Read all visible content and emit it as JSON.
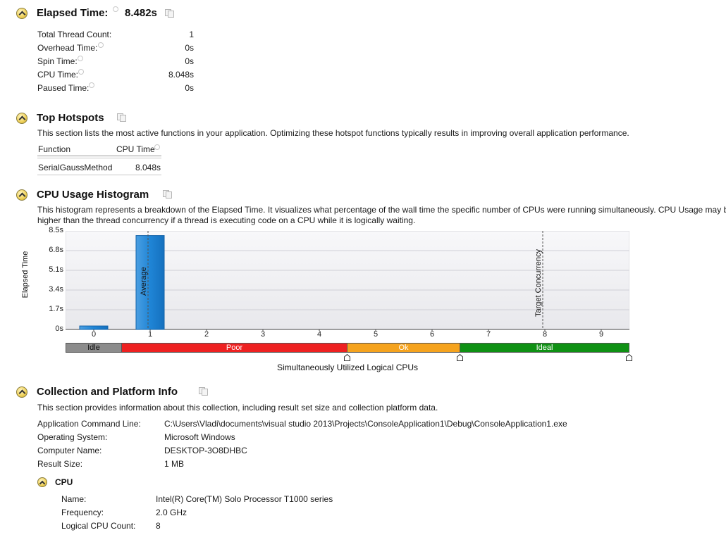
{
  "summary": {
    "title": "Elapsed Time:",
    "elapsed": "8.482s",
    "rows": [
      {
        "label": "Total Thread Count:",
        "value": "1"
      },
      {
        "label": "Overhead Time:",
        "value": "0s"
      },
      {
        "label": "Spin Time:",
        "value": "0s"
      },
      {
        "label": "CPU Time:",
        "value": "8.048s"
      },
      {
        "label": "Paused Time:",
        "value": "0s"
      }
    ]
  },
  "hotspots": {
    "title": "Top Hotspots",
    "description": "This section lists the most active functions in your application. Optimizing these hotspot functions typically results in improving overall application performance.",
    "columns": [
      "Function",
      "CPU Time"
    ],
    "rows": [
      {
        "function": "SerialGaussMethod",
        "cpu_time": "8.048s"
      }
    ]
  },
  "histogram": {
    "title": "CPU Usage Histogram",
    "description_line1": "This histogram represents a breakdown of the Elapsed Time. It visualizes what percentage of the wall time the specific number of CPUs were running simultaneously. CPU Usage may be",
    "description_line2": "higher than the thread concurrency if a thread is executing code on a CPU while it is logically waiting.",
    "ylabel": "Elapsed Time",
    "xlabel": "Simultaneously Utilized Logical CPUs",
    "average_label": "Average",
    "target_label": "Target Concurrency",
    "bands": [
      {
        "label": "Idle",
        "color": "#8c8c8c"
      },
      {
        "label": "Poor",
        "color": "#ee2121"
      },
      {
        "label": "Ok",
        "color": "#f5a31e"
      },
      {
        "label": "Ideal",
        "color": "#0f9114"
      }
    ]
  },
  "chart_data": {
    "type": "bar",
    "categories": [
      "0",
      "1",
      "2",
      "3",
      "4",
      "5",
      "6",
      "7",
      "8",
      "9"
    ],
    "values": [
      0.3,
      8.1,
      0,
      0,
      0,
      0,
      0,
      0,
      0,
      0
    ],
    "ylabel": "Elapsed Time",
    "xlabel": "Simultaneously Utilized Logical CPUs",
    "ylim": [
      0,
      8.5
    ],
    "yticks": [
      "0s",
      "1.7s",
      "3.4s",
      "5.1s",
      "6.8s",
      "8.5s"
    ],
    "average": 1,
    "target_concurrency": 8
  },
  "collection": {
    "title": "Collection and Platform Info",
    "description": "This section provides information about this collection, including result set size and collection platform data.",
    "rows": [
      {
        "label": "Application Command Line:",
        "value": "C:\\Users\\Vladi\\documents\\visual studio 2013\\Projects\\ConsoleApplication1\\Debug\\ConsoleApplication1.exe"
      },
      {
        "label": "Operating System:",
        "value": "Microsoft Windows"
      },
      {
        "label": "Computer Name:",
        "value": "DESKTOP-3O8DHBC"
      },
      {
        "label": "Result Size:",
        "value": "1 MB"
      }
    ],
    "cpu": {
      "title": "CPU",
      "rows": [
        {
          "label": "Name:",
          "value": "Intel(R) Core(TM) Solo Processor T1000 series"
        },
        {
          "label": "Frequency:",
          "value": "2.0 GHz"
        },
        {
          "label": "Logical CPU Count:",
          "value": "8"
        }
      ]
    }
  }
}
